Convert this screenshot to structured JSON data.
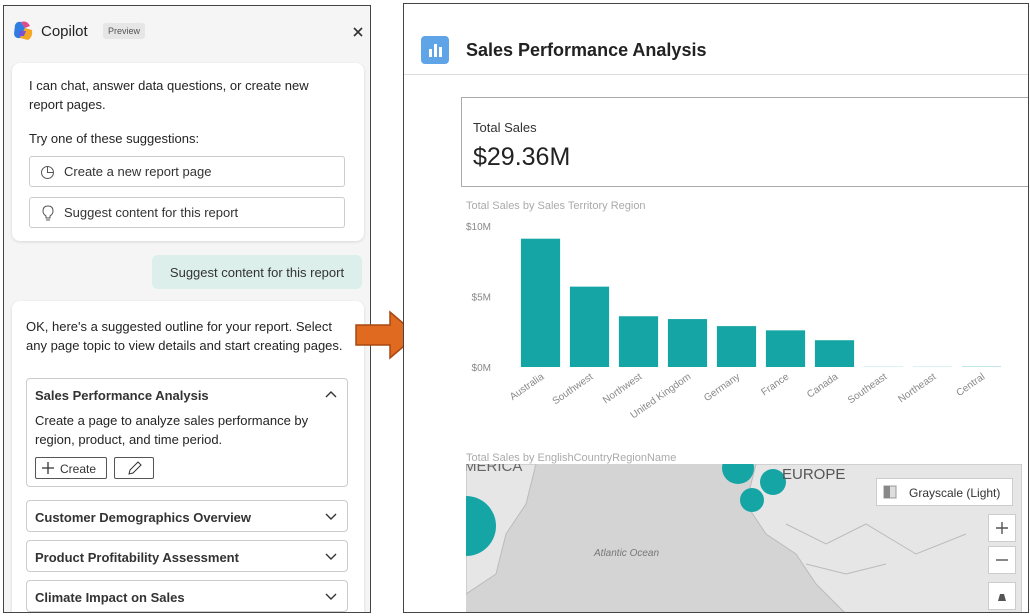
{
  "copilot": {
    "title": "Copilot",
    "badge": "Preview",
    "intro": "I can chat, answer data questions, or create new report pages.",
    "prompt": "Try one of these suggestions:",
    "suggestions": [
      "Create a new report page",
      "Suggest content for this report"
    ],
    "user_message": "Suggest content for this report",
    "reply": "OK, here's a suggested outline for your report. Select any page topic to view details and start creating pages.",
    "topics": [
      {
        "title": "Sales Performance Analysis",
        "description": "Create a page to analyze sales performance by region, product, and time period.",
        "action": "Create"
      },
      {
        "title": "Customer Demographics Overview"
      },
      {
        "title": "Product Profitability Assessment"
      },
      {
        "title": "Climate Impact on Sales"
      }
    ]
  },
  "report": {
    "title": "Sales Performance Analysis",
    "card": {
      "label": "Total Sales",
      "value": "$29.36M"
    },
    "chart": {
      "type": "bar",
      "title": "Total Sales by Sales Territory Region",
      "categories": [
        "Australia",
        "Southwest",
        "Northwest",
        "United Kingdom",
        "Germany",
        "France",
        "Canada",
        "Southeast",
        "Northeast",
        "Central"
      ],
      "values": [
        9.1,
        5.7,
        3.6,
        3.4,
        2.9,
        2.6,
        1.9,
        0.01,
        0.01,
        0.02
      ],
      "color": "#16a5a5",
      "ylim": [
        0,
        10
      ],
      "yticks": [
        {
          "value": 0,
          "label": "$0M"
        },
        {
          "value": 5,
          "label": "$5M"
        },
        {
          "value": 10,
          "label": "$10M"
        }
      ]
    },
    "map": {
      "title": "Total Sales by EnglishCountryRegionName",
      "labels": [
        "AMERICA",
        "EUROPE",
        "Atlantic Ocean"
      ],
      "style_button": "Grayscale (Light)"
    }
  }
}
